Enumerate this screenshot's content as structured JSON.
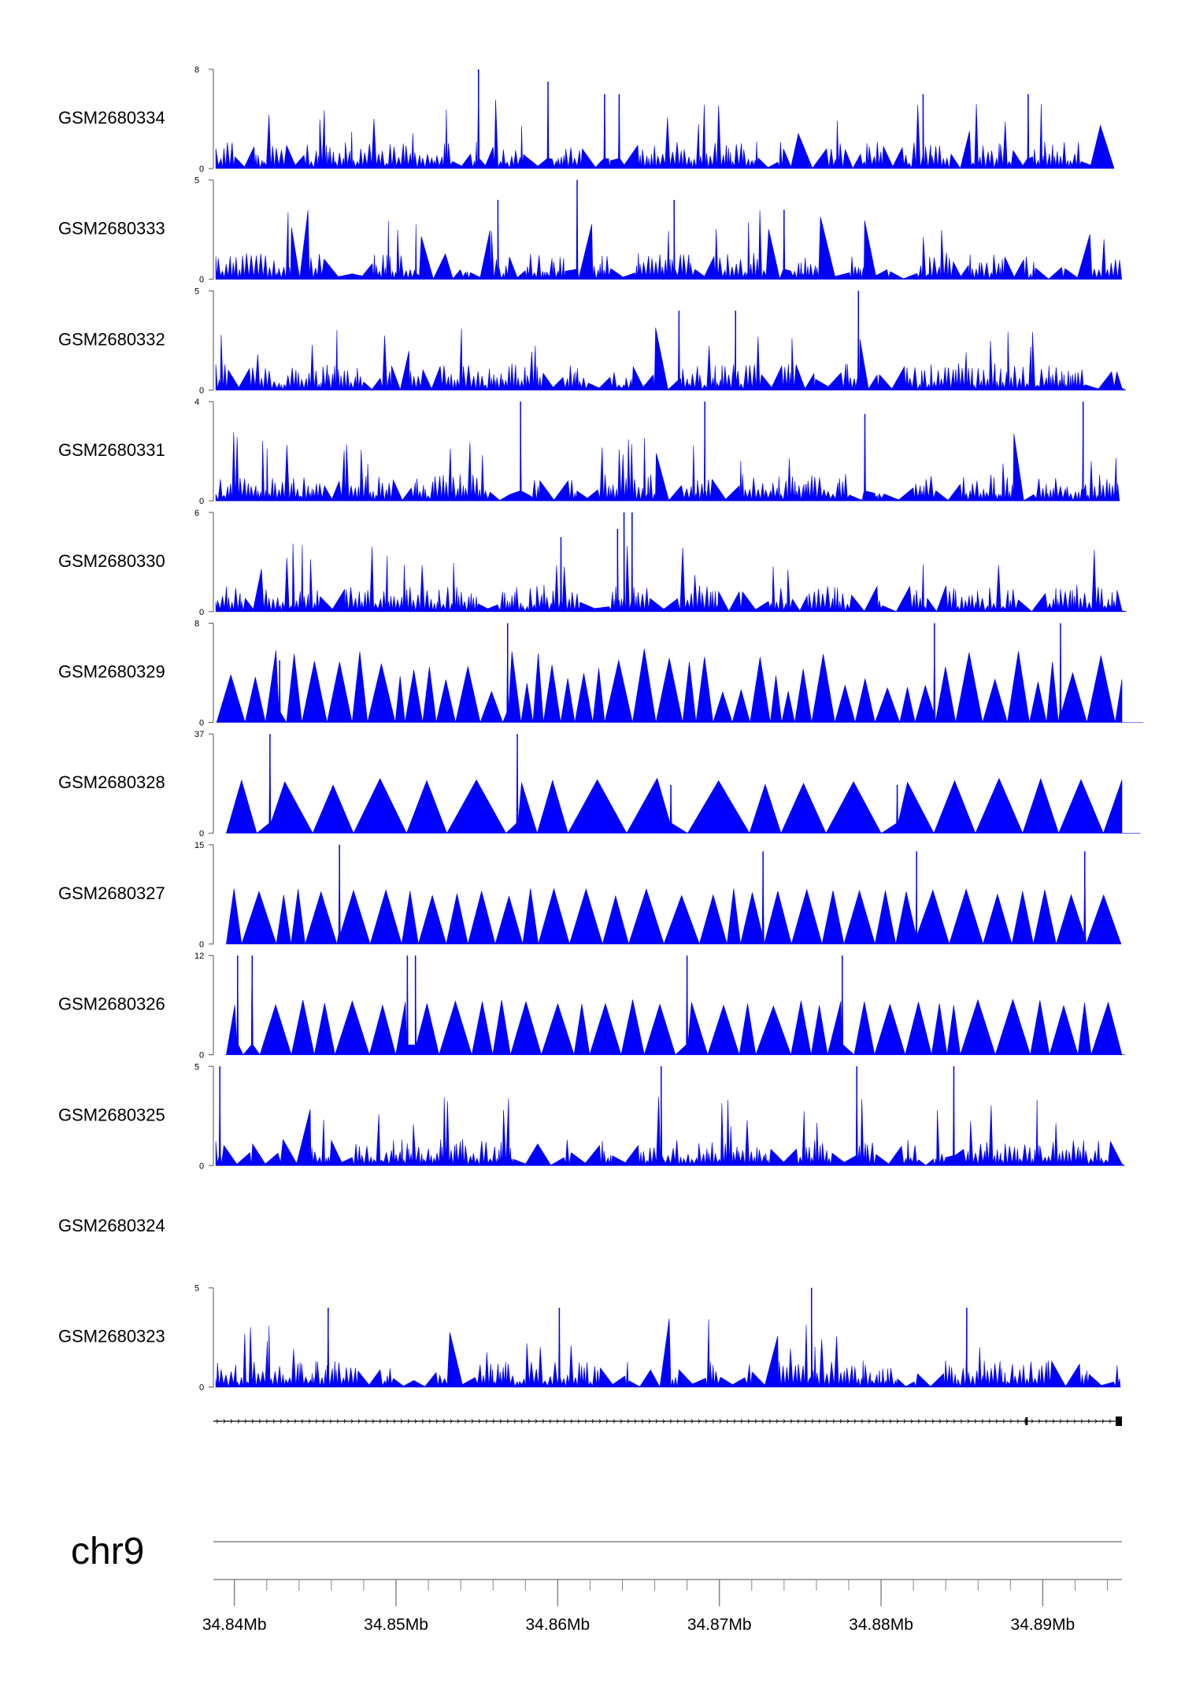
{
  "chart_data": {
    "type": "area",
    "chromosome": "chr9",
    "xlim": [
      34.8387,
      34.8949
    ],
    "x_ticks": [
      "34.84Mb",
      "34.85Mb",
      "34.86Mb",
      "34.87Mb",
      "34.88Mb",
      "34.89Mb"
    ],
    "x_tick_values": [
      34.84,
      34.85,
      34.86,
      34.87,
      34.88,
      34.89
    ],
    "fill_color": "#0000ff",
    "tracks": [
      {
        "name": "GSM2680334",
        "ylim": [
          0,
          8
        ],
        "y_tick_labels": [
          "0",
          "8"
        ],
        "style": "dense",
        "peaks": [
          [
            34.8551,
            8
          ],
          [
            34.8594,
            7
          ],
          [
            34.8826,
            6
          ],
          [
            34.8891,
            6
          ],
          [
            34.8629,
            6
          ],
          [
            34.8638,
            6
          ]
        ]
      },
      {
        "name": "GSM2680333",
        "ylim": [
          0,
          5
        ],
        "y_tick_labels": [
          "0",
          "5"
        ],
        "style": "dense",
        "peaks": [
          [
            34.8612,
            5
          ],
          [
            34.8563,
            4
          ],
          [
            34.8672,
            4
          ],
          [
            34.874,
            3.5
          ]
        ]
      },
      {
        "name": "GSM2680332",
        "ylim": [
          0,
          5
        ],
        "y_tick_labels": [
          "0",
          "5"
        ],
        "style": "dense",
        "peaks": [
          [
            34.8786,
            5
          ],
          [
            34.8675,
            4
          ],
          [
            34.871,
            4
          ]
        ]
      },
      {
        "name": "GSM2680331",
        "ylim": [
          0,
          4
        ],
        "y_tick_labels": [
          "0",
          "4"
        ],
        "style": "dense",
        "peaks": [
          [
            34.8691,
            4
          ],
          [
            34.8577,
            4
          ],
          [
            34.8925,
            4
          ],
          [
            34.879,
            3.5
          ]
        ]
      },
      {
        "name": "GSM2680330",
        "ylim": [
          0,
          6
        ],
        "y_tick_labels": [
          "0",
          "6"
        ],
        "style": "dense",
        "peaks": [
          [
            34.8641,
            6
          ],
          [
            34.8646,
            6
          ],
          [
            34.8637,
            5
          ],
          [
            34.8602,
            4.5
          ]
        ]
      },
      {
        "name": "GSM2680329",
        "ylim": [
          0,
          8
        ],
        "y_tick_labels": [
          "0",
          "8"
        ],
        "style": "sparse",
        "peaks": [
          [
            34.8569,
            8
          ],
          [
            34.8833,
            8
          ],
          [
            34.8911,
            8
          ],
          [
            34.8428,
            5
          ]
        ]
      },
      {
        "name": "GSM2680328",
        "ylim": [
          0,
          37
        ],
        "y_tick_labels": [
          "0",
          "37"
        ],
        "style": "triangles",
        "peaks": [
          [
            34.8422,
            37
          ],
          [
            34.8575,
            37
          ],
          [
            34.881,
            18
          ],
          [
            34.867,
            18
          ]
        ]
      },
      {
        "name": "GSM2680327",
        "ylim": [
          0,
          15
        ],
        "y_tick_labels": [
          "0",
          "15"
        ],
        "style": "triangles",
        "peaks": [
          [
            34.8465,
            15
          ],
          [
            34.8926,
            14
          ],
          [
            34.8822,
            14
          ],
          [
            34.8727,
            14
          ]
        ]
      },
      {
        "name": "GSM2680326",
        "ylim": [
          0,
          12
        ],
        "y_tick_labels": [
          "0",
          "12"
        ],
        "style": "triangles",
        "peaks": [
          [
            34.8402,
            12
          ],
          [
            34.8411,
            12
          ],
          [
            34.8507,
            12
          ],
          [
            34.8512,
            12
          ],
          [
            34.868,
            12
          ],
          [
            34.8776,
            12
          ]
        ]
      },
      {
        "name": "GSM2680325",
        "ylim": [
          0,
          5
        ],
        "y_tick_labels": [
          "0",
          "5"
        ],
        "style": "dense",
        "peaks": [
          [
            34.8391,
            5
          ],
          [
            34.8845,
            5
          ],
          [
            34.8664,
            5
          ],
          [
            34.8785,
            5
          ]
        ]
      },
      {
        "name": "GSM2680324",
        "ylim": null,
        "y_tick_labels": [],
        "style": "empty",
        "peaks": []
      },
      {
        "name": "GSM2680323",
        "ylim": [
          0,
          5
        ],
        "y_tick_labels": [
          "0",
          "5"
        ],
        "style": "dense",
        "peaks": [
          [
            34.8757,
            5
          ],
          [
            34.8853,
            4
          ],
          [
            34.8458,
            4
          ],
          [
            34.8601,
            4
          ]
        ]
      }
    ],
    "gene_track": {
      "strand": "+",
      "exons": [
        34.889,
        34.8947
      ]
    }
  }
}
